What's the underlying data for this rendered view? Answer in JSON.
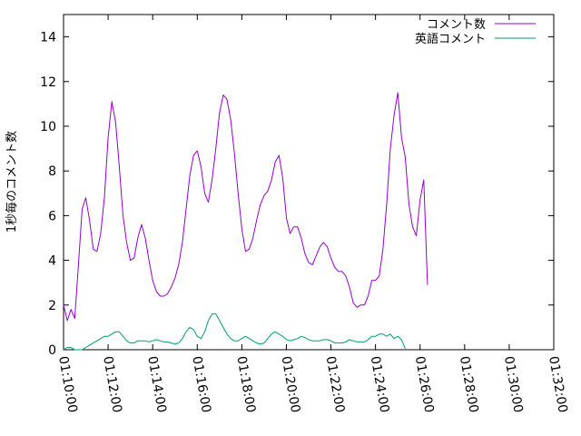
{
  "chart_data": {
    "type": "line",
    "title": "",
    "xlabel": "",
    "ylabel": "1秒毎のコメント数",
    "xlim": [
      "01:10:00",
      "01:32:00"
    ],
    "ylim": [
      0,
      15
    ],
    "x_ticks": [
      "01:10:00",
      "01:12:00",
      "01:14:00",
      "01:16:00",
      "01:18:00",
      "01:20:00",
      "01:22:00",
      "01:24:00",
      "01:26:00",
      "01:28:00",
      "01:30:00",
      "01:32:00"
    ],
    "y_ticks": [
      "0",
      "2",
      "4",
      "6",
      "8",
      "10",
      "12",
      "14"
    ],
    "grid": false,
    "legend_position": "top-right",
    "series": [
      {
        "name": "コメント数",
        "color": "#9400d3",
        "points": [
          [
            "01:10:00",
            2.0
          ],
          [
            "01:10:10",
            1.3
          ],
          [
            "01:10:20",
            1.8
          ],
          [
            "01:10:30",
            1.4
          ],
          [
            "01:10:40",
            3.8
          ],
          [
            "01:10:50",
            6.3
          ],
          [
            "01:11:00",
            6.8
          ],
          [
            "01:11:10",
            5.8
          ],
          [
            "01:11:20",
            4.5
          ],
          [
            "01:11:30",
            4.4
          ],
          [
            "01:11:40",
            5.2
          ],
          [
            "01:11:50",
            6.8
          ],
          [
            "01:12:00",
            9.5
          ],
          [
            "01:12:10",
            11.1
          ],
          [
            "01:12:20",
            10.2
          ],
          [
            "01:12:30",
            8.2
          ],
          [
            "01:12:40",
            6.0
          ],
          [
            "01:12:50",
            4.8
          ],
          [
            "01:13:00",
            4.0
          ],
          [
            "01:13:10",
            4.1
          ],
          [
            "01:13:20",
            5.0
          ],
          [
            "01:13:30",
            5.6
          ],
          [
            "01:13:40",
            5.0
          ],
          [
            "01:13:50",
            4.0
          ],
          [
            "01:14:00",
            3.1
          ],
          [
            "01:14:10",
            2.6
          ],
          [
            "01:14:20",
            2.4
          ],
          [
            "01:14:30",
            2.4
          ],
          [
            "01:14:40",
            2.5
          ],
          [
            "01:14:50",
            2.8
          ],
          [
            "01:15:00",
            3.2
          ],
          [
            "01:15:10",
            3.8
          ],
          [
            "01:15:20",
            4.8
          ],
          [
            "01:15:30",
            6.3
          ],
          [
            "01:15:40",
            7.8
          ],
          [
            "01:15:50",
            8.7
          ],
          [
            "01:16:00",
            8.9
          ],
          [
            "01:16:10",
            8.2
          ],
          [
            "01:16:20",
            7.0
          ],
          [
            "01:16:30",
            6.6
          ],
          [
            "01:16:40",
            7.6
          ],
          [
            "01:16:50",
            9.0
          ],
          [
            "01:17:00",
            10.6
          ],
          [
            "01:17:10",
            11.4
          ],
          [
            "01:17:20",
            11.2
          ],
          [
            "01:17:30",
            10.3
          ],
          [
            "01:17:40",
            8.8
          ],
          [
            "01:17:50",
            7.0
          ],
          [
            "01:18:00",
            5.4
          ],
          [
            "01:18:10",
            4.4
          ],
          [
            "01:18:20",
            4.5
          ],
          [
            "01:18:30",
            5.0
          ],
          [
            "01:18:40",
            5.8
          ],
          [
            "01:18:50",
            6.5
          ],
          [
            "01:19:00",
            6.9
          ],
          [
            "01:19:10",
            7.1
          ],
          [
            "01:19:20",
            7.6
          ],
          [
            "01:19:30",
            8.4
          ],
          [
            "01:19:40",
            8.7
          ],
          [
            "01:19:50",
            7.7
          ],
          [
            "01:20:00",
            5.9
          ],
          [
            "01:20:10",
            5.2
          ],
          [
            "01:20:20",
            5.5
          ],
          [
            "01:20:30",
            5.5
          ],
          [
            "01:20:40",
            5.0
          ],
          [
            "01:20:50",
            4.3
          ],
          [
            "01:21:00",
            3.9
          ],
          [
            "01:21:10",
            3.8
          ],
          [
            "01:21:20",
            4.2
          ],
          [
            "01:21:30",
            4.6
          ],
          [
            "01:21:40",
            4.8
          ],
          [
            "01:21:50",
            4.6
          ],
          [
            "01:22:00",
            4.1
          ],
          [
            "01:22:10",
            3.7
          ],
          [
            "01:22:20",
            3.5
          ],
          [
            "01:22:30",
            3.5
          ],
          [
            "01:22:40",
            3.3
          ],
          [
            "01:22:50",
            2.8
          ],
          [
            "01:23:00",
            2.1
          ],
          [
            "01:23:10",
            1.9
          ],
          [
            "01:23:20",
            2.0
          ],
          [
            "01:23:30",
            2.0
          ],
          [
            "01:23:40",
            2.4
          ],
          [
            "01:23:50",
            3.1
          ],
          [
            "01:24:00",
            3.1
          ],
          [
            "01:24:10",
            3.3
          ],
          [
            "01:24:20",
            4.5
          ],
          [
            "01:24:30",
            6.5
          ],
          [
            "01:24:40",
            9.0
          ],
          [
            "01:24:50",
            10.5
          ],
          [
            "01:25:00",
            11.5
          ],
          [
            "01:25:10",
            9.5
          ],
          [
            "01:25:20",
            8.6
          ],
          [
            "01:25:30",
            6.5
          ],
          [
            "01:25:40",
            5.5
          ],
          [
            "01:25:50",
            5.1
          ],
          [
            "01:26:00",
            6.7
          ],
          [
            "01:26:10",
            7.6
          ],
          [
            "01:26:20",
            2.9
          ]
        ]
      },
      {
        "name": "英語コメント",
        "color": "#009e73",
        "points": [
          [
            "01:10:00",
            0.0
          ],
          [
            "01:10:10",
            0.1
          ],
          [
            "01:10:20",
            0.1
          ],
          [
            "01:10:30",
            0.0
          ],
          [
            "01:10:40",
            0.0
          ],
          [
            "01:10:50",
            0.0
          ],
          [
            "01:11:00",
            0.1
          ],
          [
            "01:11:10",
            0.2
          ],
          [
            "01:11:20",
            0.3
          ],
          [
            "01:11:30",
            0.4
          ],
          [
            "01:11:40",
            0.5
          ],
          [
            "01:11:50",
            0.6
          ],
          [
            "01:12:00",
            0.6
          ],
          [
            "01:12:10",
            0.7
          ],
          [
            "01:12:20",
            0.8
          ],
          [
            "01:12:30",
            0.8
          ],
          [
            "01:12:40",
            0.6
          ],
          [
            "01:12:50",
            0.4
          ],
          [
            "01:13:00",
            0.3
          ],
          [
            "01:13:10",
            0.3
          ],
          [
            "01:13:20",
            0.4
          ],
          [
            "01:13:30",
            0.4
          ],
          [
            "01:13:40",
            0.4
          ],
          [
            "01:13:50",
            0.35
          ],
          [
            "01:14:00",
            0.4
          ],
          [
            "01:14:10",
            0.45
          ],
          [
            "01:14:20",
            0.4
          ],
          [
            "01:14:30",
            0.35
          ],
          [
            "01:14:40",
            0.35
          ],
          [
            "01:14:50",
            0.3
          ],
          [
            "01:15:00",
            0.25
          ],
          [
            "01:15:10",
            0.3
          ],
          [
            "01:15:20",
            0.5
          ],
          [
            "01:15:30",
            0.8
          ],
          [
            "01:15:40",
            1.0
          ],
          [
            "01:15:50",
            0.9
          ],
          [
            "01:16:00",
            0.6
          ],
          [
            "01:16:10",
            0.5
          ],
          [
            "01:16:20",
            0.8
          ],
          [
            "01:16:30",
            1.3
          ],
          [
            "01:16:40",
            1.6
          ],
          [
            "01:16:50",
            1.6
          ],
          [
            "01:17:00",
            1.3
          ],
          [
            "01:17:10",
            1.0
          ],
          [
            "01:17:20",
            0.7
          ],
          [
            "01:17:30",
            0.5
          ],
          [
            "01:17:40",
            0.4
          ],
          [
            "01:17:50",
            0.4
          ],
          [
            "01:18:00",
            0.5
          ],
          [
            "01:18:10",
            0.6
          ],
          [
            "01:18:20",
            0.5
          ],
          [
            "01:18:30",
            0.4
          ],
          [
            "01:18:40",
            0.3
          ],
          [
            "01:18:50",
            0.25
          ],
          [
            "01:19:00",
            0.3
          ],
          [
            "01:19:10",
            0.5
          ],
          [
            "01:19:20",
            0.7
          ],
          [
            "01:19:30",
            0.8
          ],
          [
            "01:19:40",
            0.7
          ],
          [
            "01:19:50",
            0.6
          ],
          [
            "01:20:00",
            0.45
          ],
          [
            "01:20:10",
            0.4
          ],
          [
            "01:20:20",
            0.45
          ],
          [
            "01:20:30",
            0.5
          ],
          [
            "01:20:40",
            0.6
          ],
          [
            "01:20:50",
            0.55
          ],
          [
            "01:21:00",
            0.45
          ],
          [
            "01:21:10",
            0.4
          ],
          [
            "01:21:20",
            0.4
          ],
          [
            "01:21:30",
            0.4
          ],
          [
            "01:21:40",
            0.45
          ],
          [
            "01:21:50",
            0.45
          ],
          [
            "01:22:00",
            0.4
          ],
          [
            "01:22:10",
            0.3
          ],
          [
            "01:22:20",
            0.3
          ],
          [
            "01:22:30",
            0.3
          ],
          [
            "01:22:40",
            0.35
          ],
          [
            "01:22:50",
            0.45
          ],
          [
            "01:23:00",
            0.4
          ],
          [
            "01:23:10",
            0.35
          ],
          [
            "01:23:20",
            0.35
          ],
          [
            "01:23:30",
            0.35
          ],
          [
            "01:23:40",
            0.45
          ],
          [
            "01:23:50",
            0.6
          ],
          [
            "01:24:00",
            0.6
          ],
          [
            "01:24:10",
            0.7
          ],
          [
            "01:24:20",
            0.7
          ],
          [
            "01:24:30",
            0.6
          ],
          [
            "01:24:40",
            0.7
          ],
          [
            "01:24:50",
            0.5
          ],
          [
            "01:25:00",
            0.6
          ],
          [
            "01:25:10",
            0.45
          ],
          [
            "01:25:20",
            0.05
          ]
        ]
      }
    ]
  }
}
